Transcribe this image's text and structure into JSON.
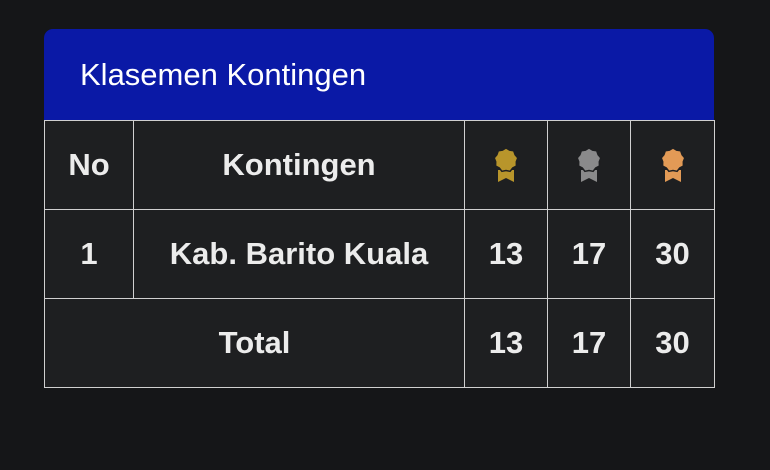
{
  "title": "Klasemen Kontingen",
  "columns": {
    "no": "No",
    "kontingen": "Kontingen",
    "medals": [
      {
        "icon": "gold-medal-icon",
        "color": "#b8952b"
      },
      {
        "icon": "silver-medal-icon",
        "color": "#8a8a8b"
      },
      {
        "icon": "bronze-medal-icon",
        "color": "#e29a56"
      }
    ]
  },
  "rows": [
    {
      "no": "1",
      "kontingen": "Kab. Barito Kuala",
      "gold": "13",
      "silver": "17",
      "bronze": "30"
    }
  ],
  "total": {
    "label": "Total",
    "gold": "13",
    "silver": "17",
    "bronze": "30"
  }
}
